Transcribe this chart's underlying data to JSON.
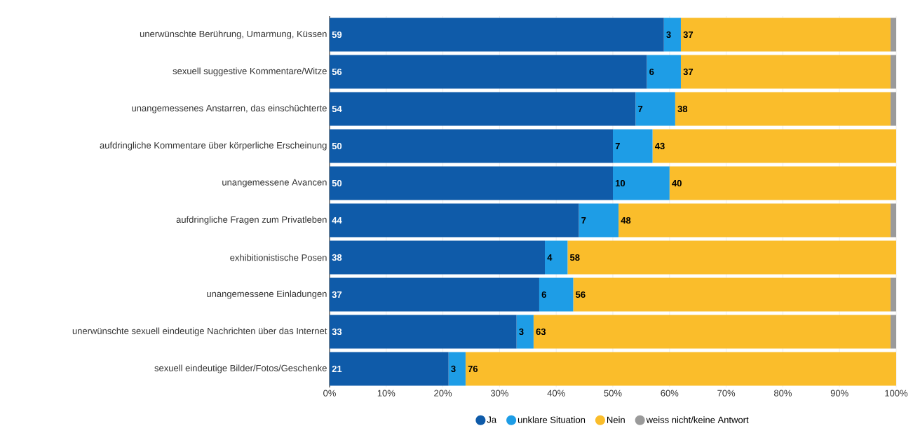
{
  "chart_data": {
    "type": "bar",
    "orientation": "horizontal",
    "stacked": true,
    "categories": [
      "unerwünschte Berührung, Umarmung, Küssen",
      "sexuell suggestive Kommentare/Witze",
      "unangemessenes Anstarren, das einschüchterte",
      "aufdringliche Kommentare über körperliche Erscheinung",
      "unangemessene Avancen",
      "aufdringliche Fragen zum Privatleben",
      "exhibitionistische Posen",
      "unangemessene Einladungen",
      "unerwünschte sexuell eindeutige Nachrichten über das Internet",
      "sexuell eindeutige Bilder/Fotos/Geschenke"
    ],
    "series": [
      {
        "name": "Ja",
        "color": "#0f5ba9",
        "values": [
          59,
          56,
          54,
          50,
          50,
          44,
          38,
          37,
          33,
          21
        ],
        "value_labels": [
          "59",
          "56",
          "54",
          "50",
          "50",
          "44",
          "38",
          "37",
          "33",
          "21"
        ]
      },
      {
        "name": "unklare Situation",
        "color": "#1e9de6",
        "values": [
          3,
          6,
          7,
          7,
          10,
          7,
          4,
          6,
          3,
          3
        ],
        "value_labels": [
          "3",
          "6",
          "7",
          "7",
          "10",
          "7",
          "4",
          "6",
          "3",
          "3"
        ]
      },
      {
        "name": "Nein",
        "color": "#fabd2b",
        "values": [
          37,
          37,
          38,
          43,
          40,
          48,
          58,
          56,
          63,
          76
        ],
        "value_labels": [
          "37",
          "37",
          "38",
          "43",
          "40",
          "48",
          "58",
          "56",
          "63",
          "76"
        ]
      },
      {
        "name": "weiss nicht/keine Antwort",
        "color": "#9a9a9a",
        "values": [
          1,
          1,
          1,
          0,
          0,
          1,
          0,
          1,
          1,
          0
        ]
      }
    ],
    "xlim": [
      0,
      100
    ],
    "xticks": [
      {
        "value": 0,
        "label": "0%"
      },
      {
        "value": 10,
        "label": "10%"
      },
      {
        "value": 20,
        "label": "20%"
      },
      {
        "value": 30,
        "label": "30%"
      },
      {
        "value": 40,
        "label": "40%"
      },
      {
        "value": 50,
        "label": "50%"
      },
      {
        "value": 60,
        "label": "60%"
      },
      {
        "value": 70,
        "label": "70%"
      },
      {
        "value": 80,
        "label": "80%"
      },
      {
        "value": 90,
        "label": "90%"
      },
      {
        "value": 100,
        "label": "100%"
      }
    ],
    "grid": "x",
    "legend": "bottom"
  }
}
